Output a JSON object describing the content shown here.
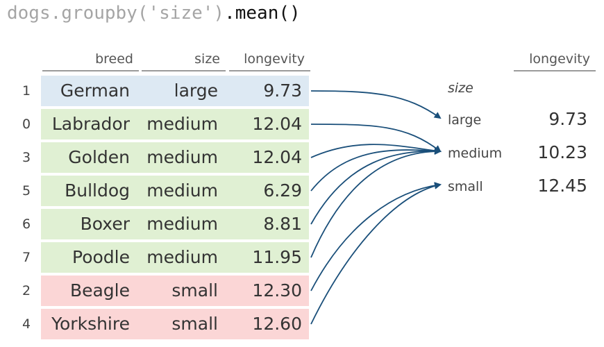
{
  "code": {
    "obj": "dogs.groupby('size')",
    "method": ".mean()"
  },
  "input_table": {
    "columns": [
      "breed",
      "size",
      "longevity"
    ],
    "rows": [
      {
        "index": "1",
        "breed": "German",
        "size": "large",
        "longevity": "9.73"
      },
      {
        "index": "0",
        "breed": "Labrador",
        "size": "medium",
        "longevity": "12.04"
      },
      {
        "index": "3",
        "breed": "Golden",
        "size": "medium",
        "longevity": "12.04"
      },
      {
        "index": "5",
        "breed": "Bulldog",
        "size": "medium",
        "longevity": "6.29"
      },
      {
        "index": "6",
        "breed": "Boxer",
        "size": "medium",
        "longevity": "8.81"
      },
      {
        "index": "7",
        "breed": "Poodle",
        "size": "medium",
        "longevity": "11.95"
      },
      {
        "index": "2",
        "breed": "Beagle",
        "size": "small",
        "longevity": "12.30"
      },
      {
        "index": "4",
        "breed": "Yorkshire",
        "size": "small",
        "longevity": "12.60"
      }
    ]
  },
  "output_table": {
    "column": "longevity",
    "index_name": "size",
    "rows": [
      {
        "size": "large",
        "longevity": "9.73"
      },
      {
        "size": "medium",
        "longevity": "10.23"
      },
      {
        "size": "small",
        "longevity": "12.45"
      }
    ]
  },
  "colors": {
    "large": "#dde9f3",
    "medium": "#e0f0d3",
    "small": "#fbd6d6",
    "arrow": "#1a4f7a"
  }
}
